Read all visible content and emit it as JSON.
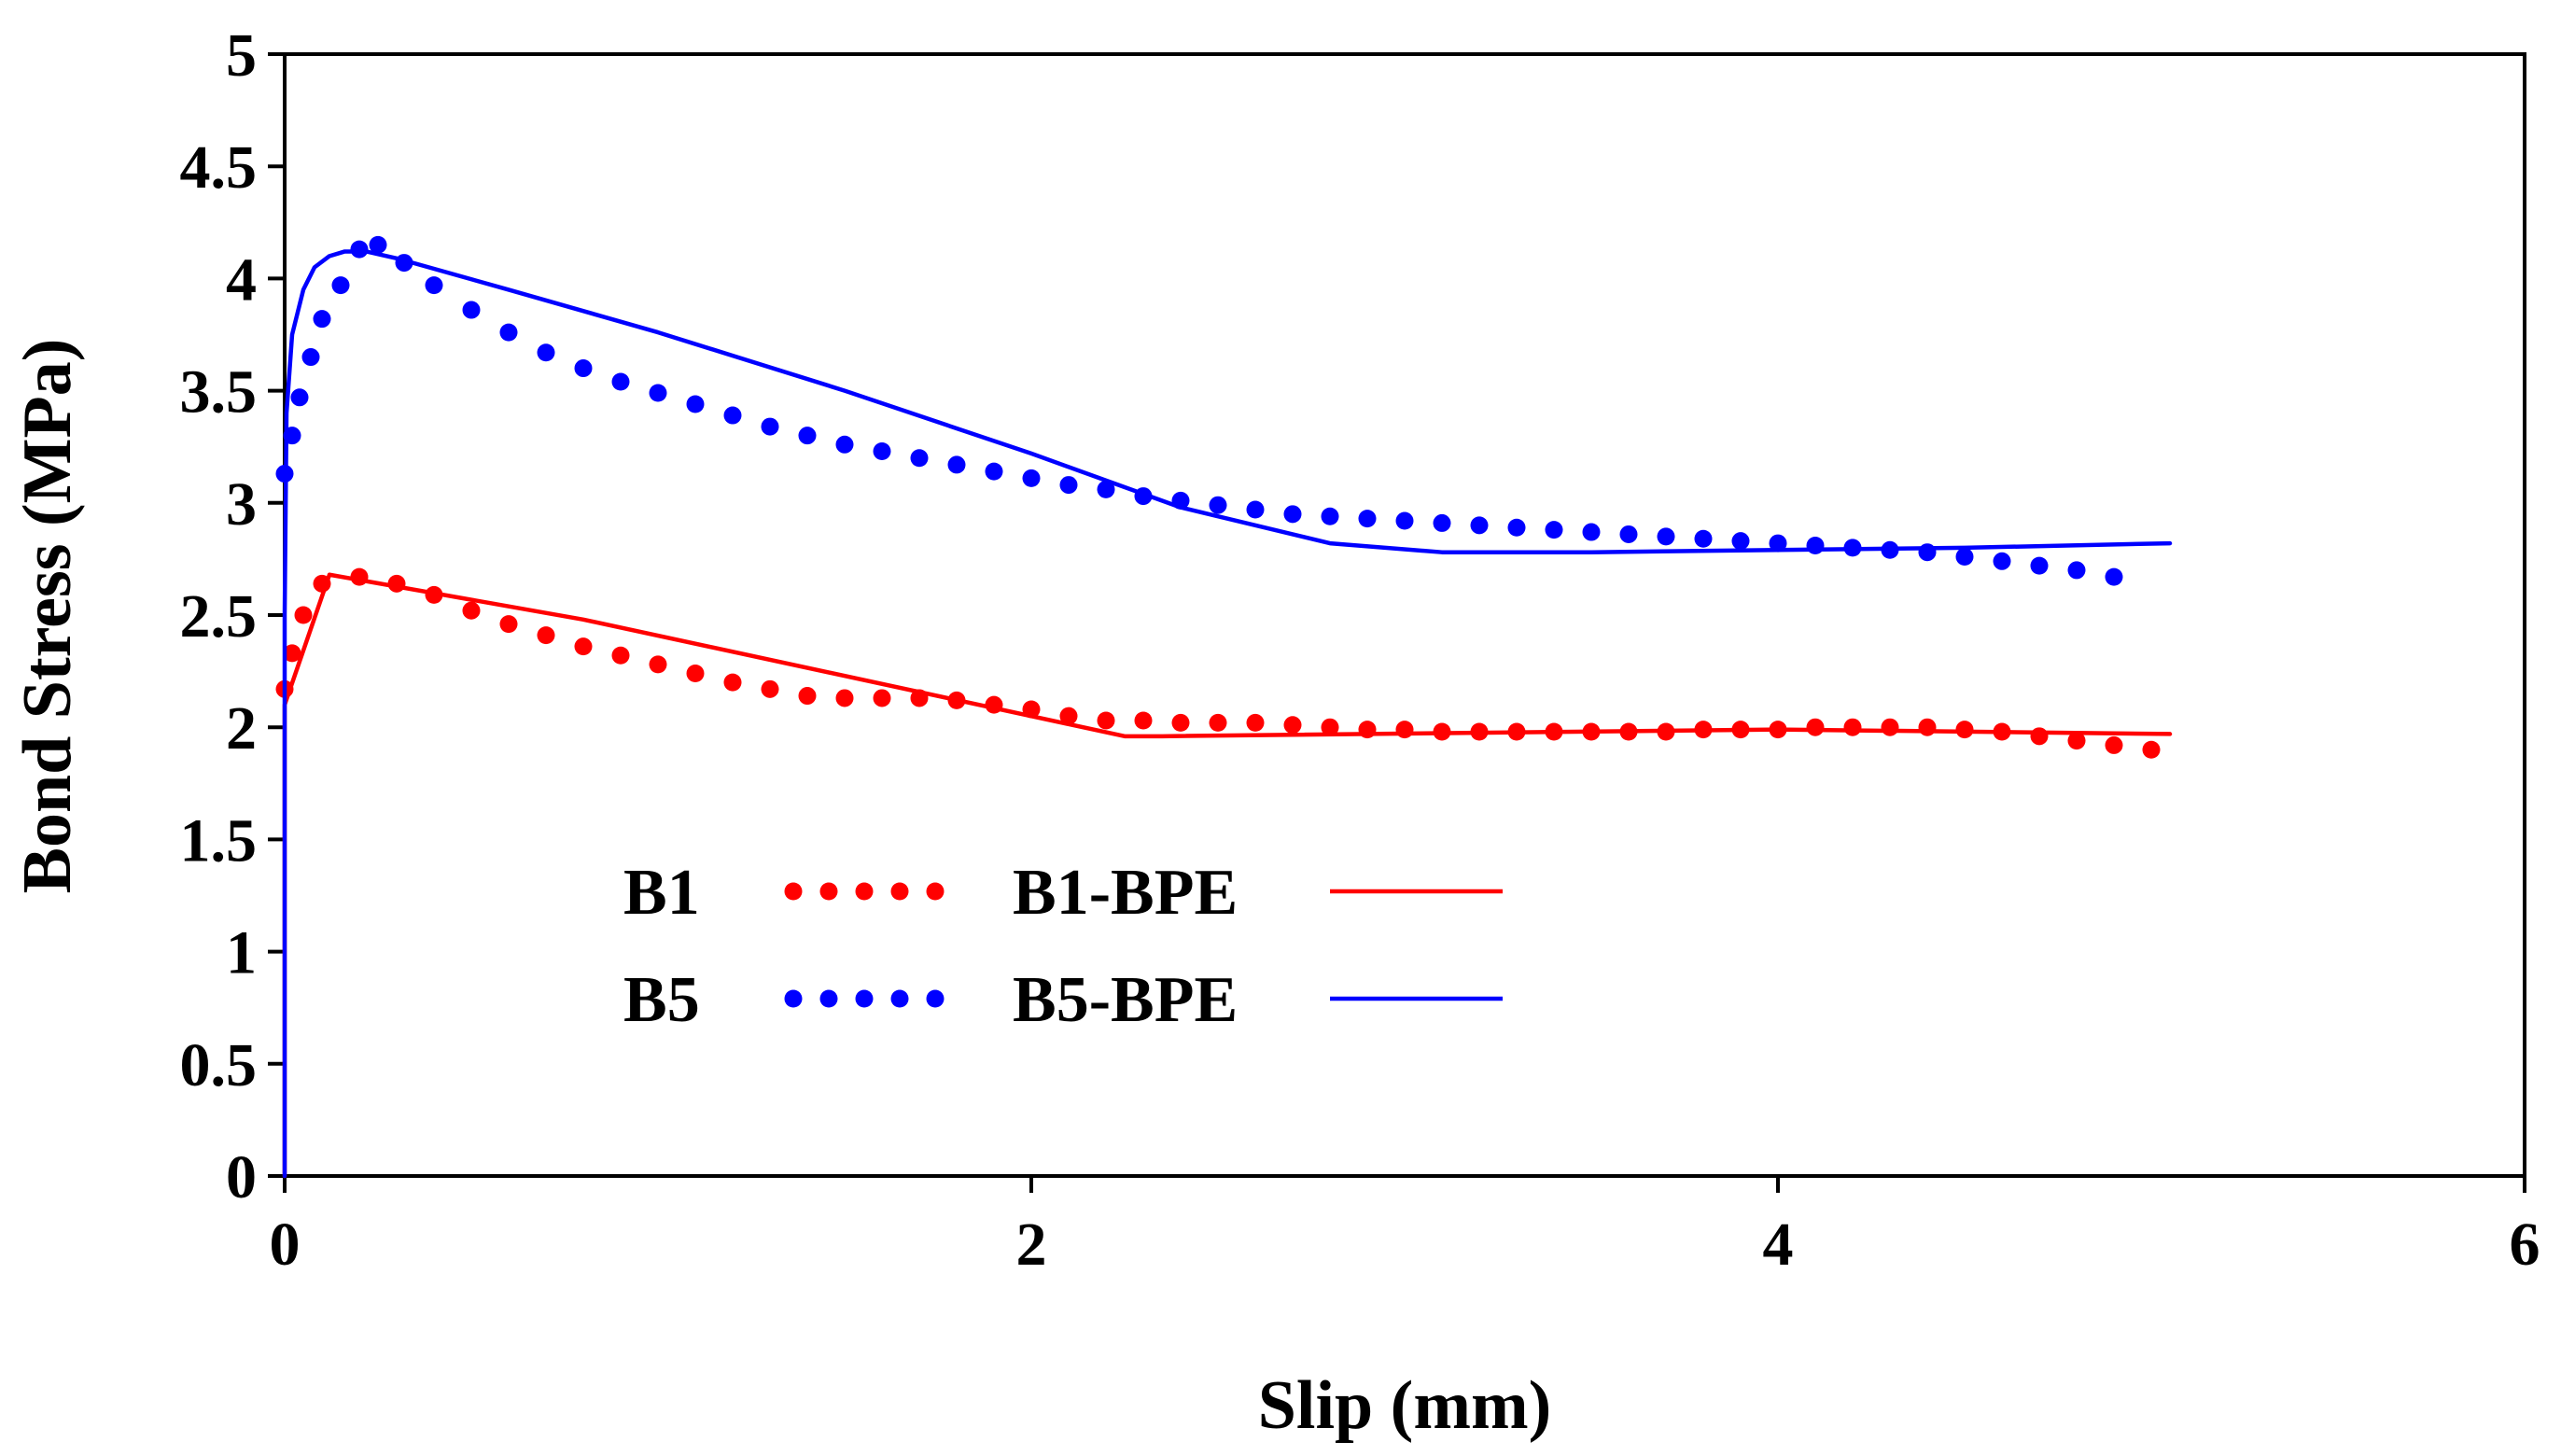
{
  "chart_data": {
    "type": "line",
    "title": "",
    "xlabel": "Slip (mm)",
    "ylabel": "Bond Stress (MPa)",
    "xlim": [
      0,
      6
    ],
    "ylim": [
      0,
      5
    ],
    "x_ticks": [
      0,
      2,
      4,
      6
    ],
    "y_ticks": [
      0,
      0.5,
      1,
      1.5,
      2,
      2.5,
      3,
      3.5,
      4,
      4.5,
      5
    ],
    "x_tick_labels": [
      "0",
      "2",
      "4",
      "6"
    ],
    "y_tick_labels": [
      "0",
      "0.5",
      "1",
      "1.5",
      "2",
      "2.5",
      "3",
      "3.5",
      "4",
      "4.5",
      "5"
    ],
    "grid": false,
    "legend_position": "lower-left",
    "series": [
      {
        "name": "B1",
        "style": "dotted",
        "color": "#ff0000",
        "x": [
          0.0,
          0.02,
          0.05,
          0.1,
          0.2,
          0.3,
          0.4,
          0.5,
          0.6,
          0.7,
          0.8,
          0.9,
          1.0,
          1.1,
          1.2,
          1.3,
          1.4,
          1.5,
          1.6,
          1.7,
          1.8,
          1.9,
          2.0,
          2.1,
          2.2,
          2.3,
          2.4,
          2.5,
          2.6,
          2.7,
          2.8,
          2.9,
          3.0,
          3.1,
          3.2,
          3.3,
          3.4,
          3.5,
          3.6,
          3.7,
          3.8,
          3.9,
          4.0,
          4.1,
          4.2,
          4.3,
          4.4,
          4.5,
          4.6,
          4.7,
          4.8,
          4.9,
          5.0
        ],
        "y": [
          2.17,
          2.33,
          2.5,
          2.64,
          2.67,
          2.64,
          2.59,
          2.52,
          2.46,
          2.41,
          2.36,
          2.32,
          2.28,
          2.24,
          2.2,
          2.17,
          2.14,
          2.13,
          2.13,
          2.13,
          2.12,
          2.1,
          2.08,
          2.05,
          2.03,
          2.03,
          2.02,
          2.02,
          2.02,
          2.01,
          2.0,
          1.99,
          1.99,
          1.98,
          1.98,
          1.98,
          1.98,
          1.98,
          1.98,
          1.98,
          1.99,
          1.99,
          1.99,
          2.0,
          2.0,
          2.0,
          2.0,
          1.99,
          1.98,
          1.96,
          1.94,
          1.92,
          1.9
        ]
      },
      {
        "name": "B1-BPE",
        "style": "solid",
        "color": "#ff0000",
        "x": [
          0.0,
          0.0,
          0.0,
          0.12,
          0.8,
          2.25,
          2.35,
          4.0,
          5.05
        ],
        "y": [
          0.0,
          1.8,
          2.1,
          2.68,
          2.48,
          1.96,
          1.96,
          1.99,
          1.97
        ]
      },
      {
        "name": "B5",
        "style": "dotted",
        "color": "#0000ff",
        "x": [
          0.0,
          0.02,
          0.04,
          0.07,
          0.1,
          0.15,
          0.2,
          0.25,
          0.32,
          0.4,
          0.5,
          0.6,
          0.7,
          0.8,
          0.9,
          1.0,
          1.1,
          1.2,
          1.3,
          1.4,
          1.5,
          1.6,
          1.7,
          1.8,
          1.9,
          2.0,
          2.1,
          2.2,
          2.3,
          2.4,
          2.5,
          2.6,
          2.7,
          2.8,
          2.9,
          3.0,
          3.1,
          3.2,
          3.3,
          3.4,
          3.5,
          3.6,
          3.7,
          3.8,
          3.9,
          4.0,
          4.1,
          4.2,
          4.3,
          4.4,
          4.5,
          4.6,
          4.7,
          4.8,
          4.9
        ],
        "y": [
          3.13,
          3.3,
          3.47,
          3.65,
          3.82,
          3.97,
          4.13,
          4.15,
          4.07,
          3.97,
          3.86,
          3.76,
          3.67,
          3.6,
          3.54,
          3.49,
          3.44,
          3.39,
          3.34,
          3.3,
          3.26,
          3.23,
          3.2,
          3.17,
          3.14,
          3.11,
          3.08,
          3.06,
          3.03,
          3.01,
          2.99,
          2.97,
          2.95,
          2.94,
          2.93,
          2.92,
          2.91,
          2.9,
          2.89,
          2.88,
          2.87,
          2.86,
          2.85,
          2.84,
          2.83,
          2.82,
          2.81,
          2.8,
          2.79,
          2.78,
          2.76,
          2.74,
          2.72,
          2.7,
          2.67
        ]
      },
      {
        "name": "B5-BPE",
        "style": "solid",
        "color": "#0000ff",
        "x": [
          0.0,
          0.0,
          0.005,
          0.02,
          0.05,
          0.08,
          0.12,
          0.16,
          0.22,
          0.3,
          0.6,
          1.0,
          1.5,
          2.0,
          2.4,
          2.8,
          3.1,
          3.5,
          4.0,
          4.5,
          5.05
        ],
        "y": [
          0.0,
          2.5,
          3.4,
          3.75,
          3.95,
          4.05,
          4.1,
          4.12,
          4.12,
          4.09,
          3.95,
          3.76,
          3.5,
          3.22,
          2.98,
          2.82,
          2.78,
          2.78,
          2.79,
          2.8,
          2.82
        ]
      }
    ]
  }
}
